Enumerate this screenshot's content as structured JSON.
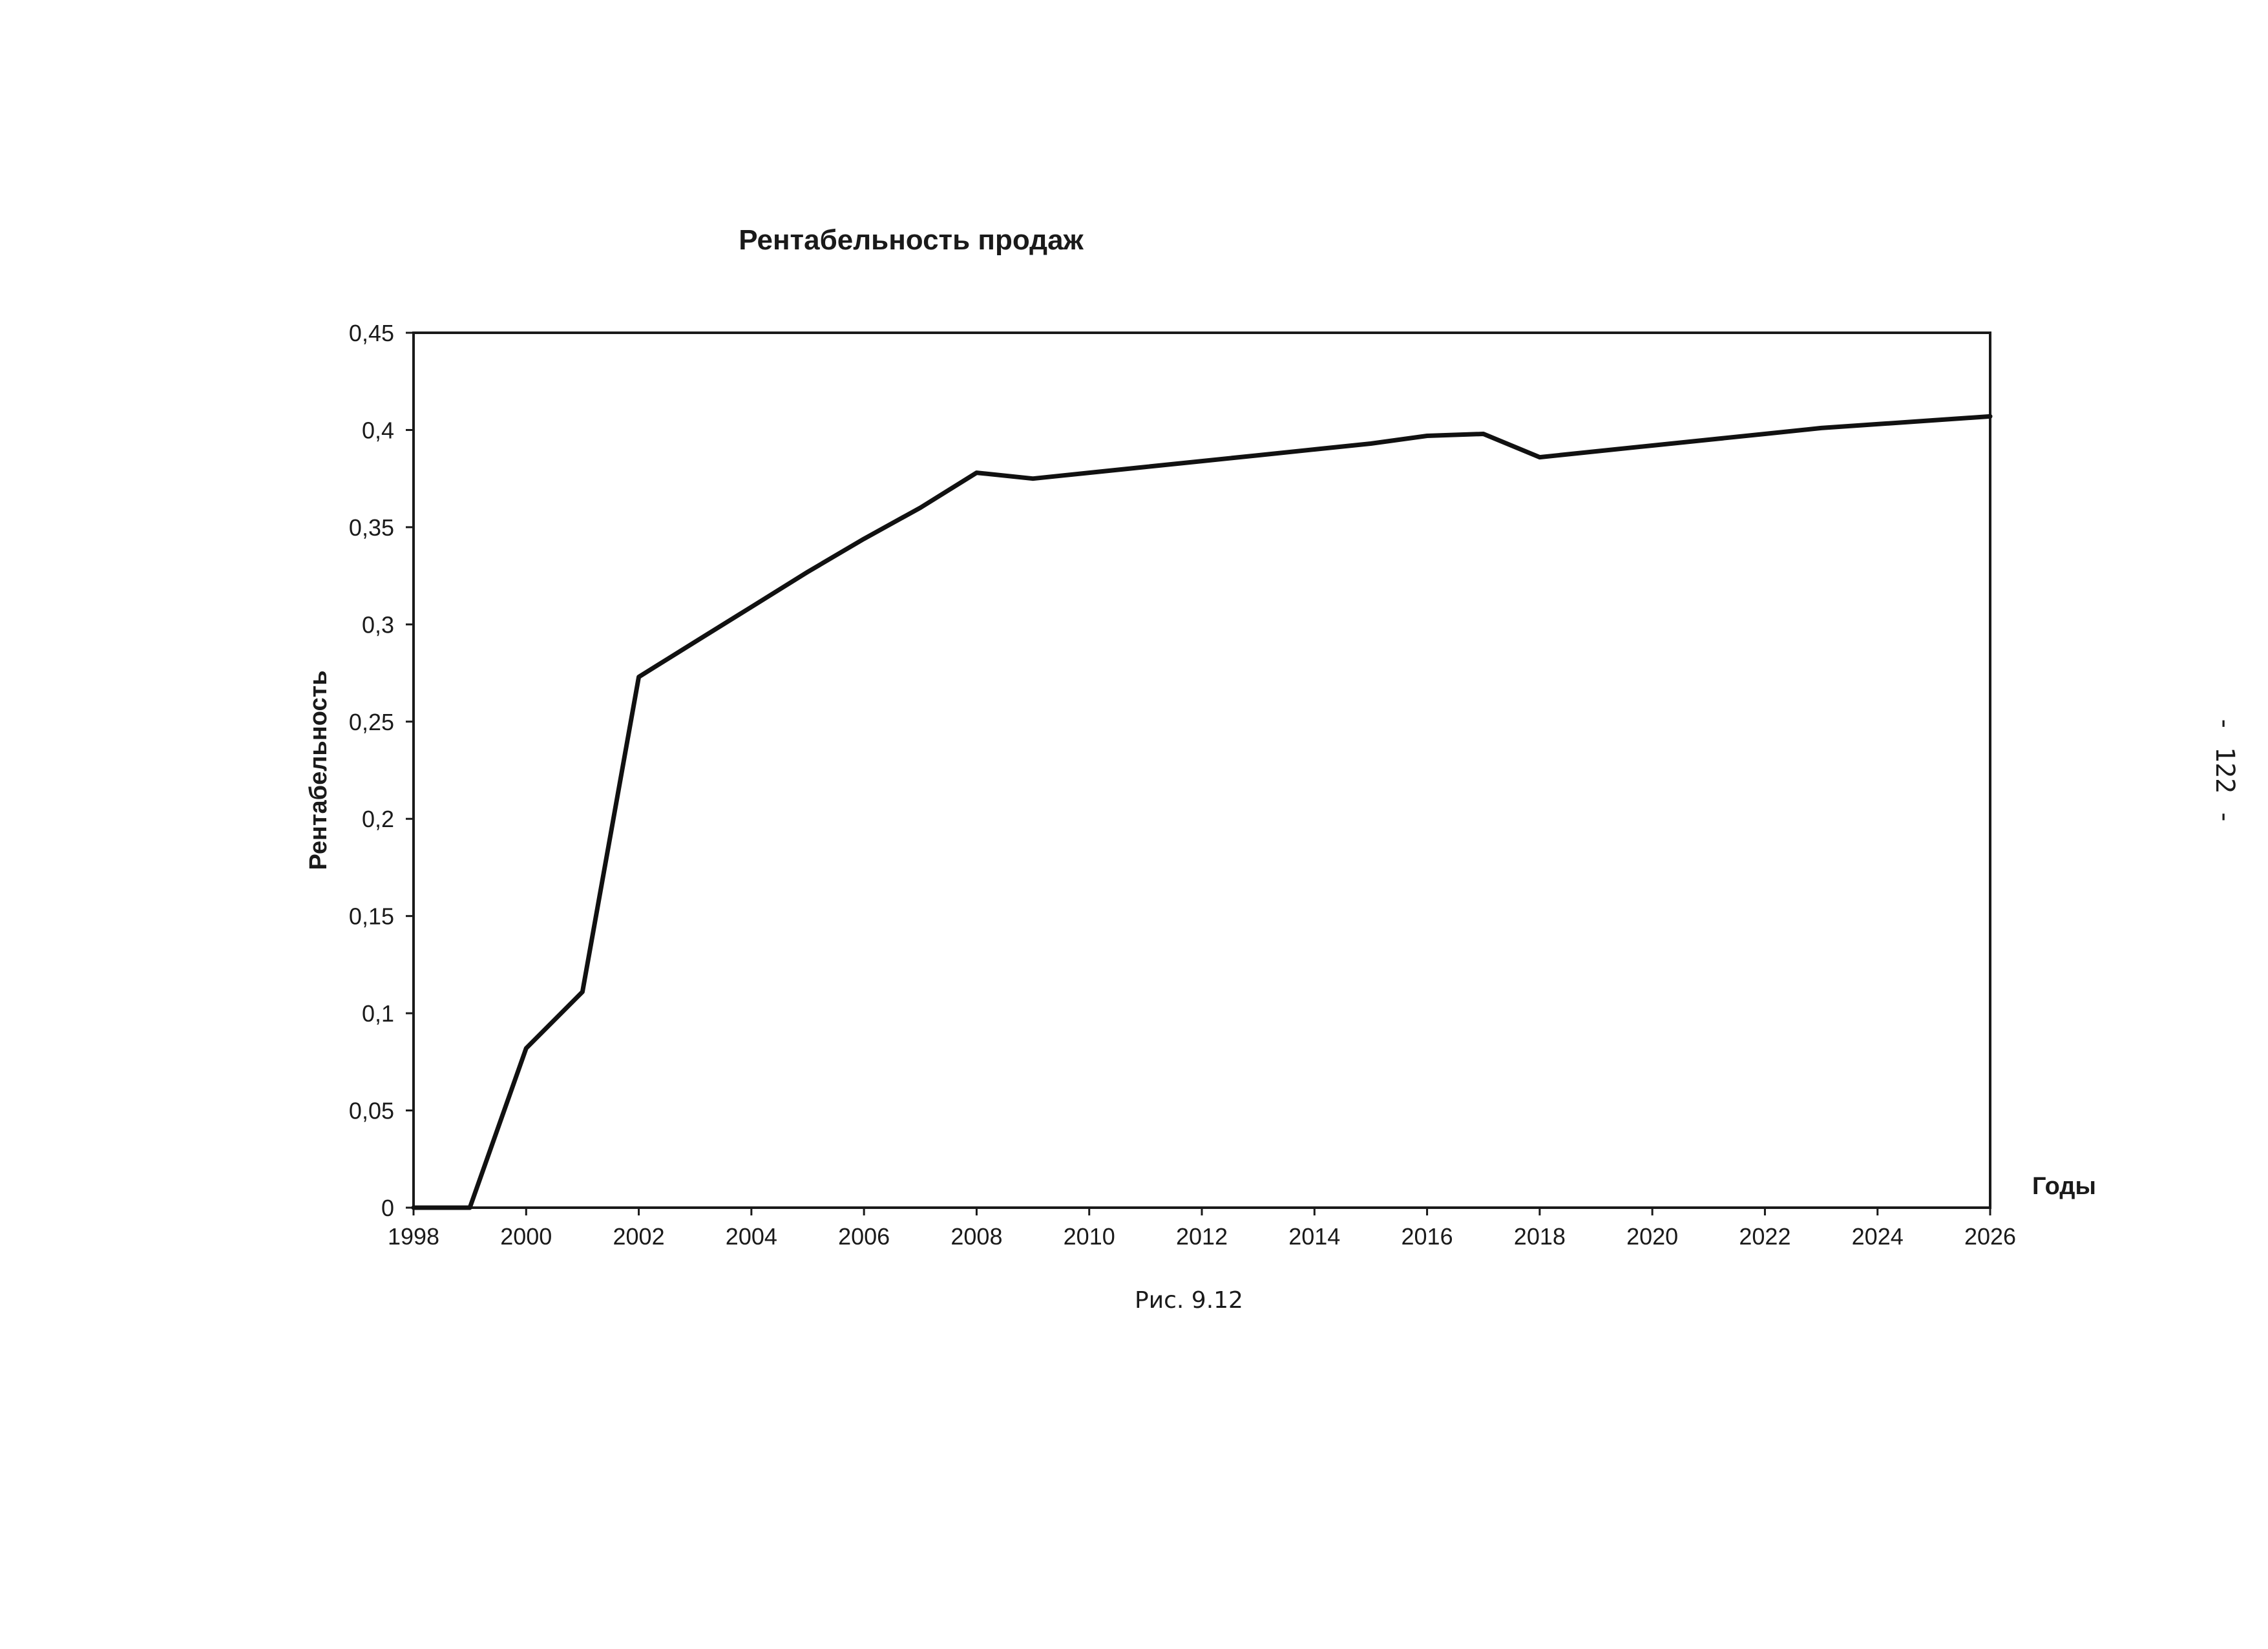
{
  "page": {
    "caption": "Рис. 9.12",
    "page_number": "- 122 -"
  },
  "colors": {
    "line": "#111111",
    "frame": "#1a1a1a",
    "background": "#ffffff"
  },
  "chart_data": {
    "type": "line",
    "title": "Рентабельность продаж",
    "xlabel": "Годы",
    "ylabel": "Рентабельность",
    "xlim": [
      1998,
      2026
    ],
    "ylim": [
      0,
      0.45
    ],
    "grid": false,
    "legend": "none",
    "x_ticks": [
      1998,
      2000,
      2002,
      2004,
      2006,
      2008,
      2010,
      2012,
      2014,
      2016,
      2018,
      2020,
      2022,
      2024,
      2026
    ],
    "x_tick_labels": [
      "1998",
      "2000",
      "2002",
      "2004",
      "2006",
      "2008",
      "2010",
      "2012",
      "2014",
      "2016",
      "2018",
      "2020",
      "2022",
      "2024",
      "2026"
    ],
    "y_ticks": [
      0,
      0.05,
      0.1,
      0.15,
      0.2,
      0.25,
      0.3,
      0.35,
      0.4,
      0.45
    ],
    "y_tick_labels": [
      "0",
      "0,05",
      "0,1",
      "0,15",
      "0,2",
      "0,25",
      "0,3",
      "0,35",
      "0,4",
      "0,45"
    ],
    "x": [
      1998,
      1999,
      2000,
      2001,
      2002,
      2003,
      2004,
      2005,
      2006,
      2007,
      2008,
      2009,
      2010,
      2011,
      2012,
      2013,
      2014,
      2015,
      2016,
      2017,
      2018,
      2019,
      2020,
      2021,
      2022,
      2023,
      2024,
      2025,
      2026
    ],
    "series": [
      {
        "values": [
          0,
          0,
          0.082,
          0.111,
          0.273,
          0.291,
          0.309,
          0.327,
          0.344,
          0.36,
          0.378,
          0.375,
          0.378,
          0.381,
          0.384,
          0.387,
          0.39,
          0.393,
          0.397,
          0.398,
          0.386,
          0.389,
          0.392,
          0.395,
          0.398,
          0.401,
          0.403,
          0.405,
          0.407
        ]
      }
    ]
  }
}
